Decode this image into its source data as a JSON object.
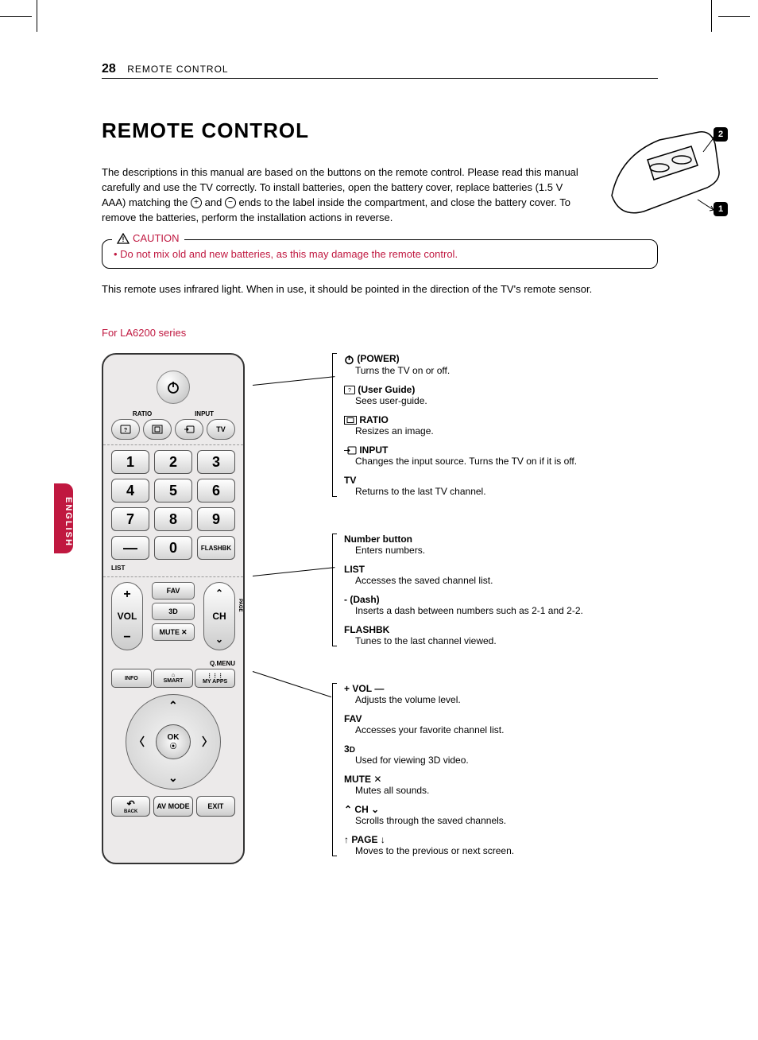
{
  "page": {
    "num": "28",
    "section": "REMOTE CONTROL",
    "title": "REMOTE CONTROL"
  },
  "lang_tab": "ENGLISH",
  "intro": {
    "p1a": "The descriptions in this manual are based on the buttons on the remote control.  Please read this manual carefully and use the TV correctly. To install batteries, open the battery cover, replace batteries (1.5 V AAA) matching the ",
    "p1b": " and ",
    "p1c": " ends to the label inside the compartment, and close the battery cover. To remove the batteries, perform the installation actions in reverse."
  },
  "caution": {
    "label": "CAUTION",
    "text": "Do not mix old and new batteries, as this may damage the remote control."
  },
  "infra": "This remote uses infrared light. When in use, it should be pointed in the direction of the TV's remote sensor.",
  "series": "For LA6200 series",
  "battery_badges": {
    "a": "2",
    "b": "1"
  },
  "remote": {
    "ratio_label": "RATIO",
    "input_label": "INPUT",
    "tv_label": "TV",
    "nums": [
      "1",
      "2",
      "3",
      "4",
      "5",
      "6",
      "7",
      "8",
      "9",
      "—",
      "0",
      "FLASHBK"
    ],
    "list_label": "LIST",
    "fav": "FAV",
    "threeD": "3D",
    "mute": "MUTE",
    "vol": "VOL",
    "ch": "CH",
    "page": "PAGE",
    "qmenu": "Q.MENU",
    "info": "INFO",
    "smart": "SMART",
    "myapps": "MY APPS",
    "ok": "OK",
    "back": "BACK",
    "avmode": "AV MODE",
    "exit": "EXIT"
  },
  "desc": {
    "g1": [
      {
        "t": "(POWER)",
        "d": "Turns the TV on or off.",
        "icon": "power"
      },
      {
        "t": "(User Guide)",
        "d": "Sees user-guide.",
        "icon": "guide"
      },
      {
        "t": "RATIO",
        "d": "Resizes an image.",
        "icon": "ratio"
      },
      {
        "t": "INPUT",
        "d": "Changes the input source. Turns the TV on if it is off.",
        "icon": "input"
      },
      {
        "t": "TV",
        "d": "Returns to the last TV channel."
      }
    ],
    "g2": [
      {
        "t": "Number button",
        "d": "Enters numbers."
      },
      {
        "t": "LIST",
        "d": "Accesses the saved channel list."
      },
      {
        "t": "- (Dash)",
        "d": "Inserts a dash between numbers such as 2-1 and 2-2."
      },
      {
        "t": "FLASHBK",
        "d": "Tunes to the last channel viewed."
      }
    ],
    "g3": [
      {
        "t": "VOL",
        "d": "Adjusts the volume level.",
        "prefix": "+ ",
        "suffix": " —"
      },
      {
        "t": "FAV",
        "d": "Accesses your favorite channel list."
      },
      {
        "t": "3D",
        "d": "Used for viewing 3D video.",
        "bold3d": true
      },
      {
        "t": "MUTE",
        "d": "Mutes all sounds.",
        "muteicon": true
      },
      {
        "t": "CH",
        "d": "Scrolls through the saved channels.",
        "chicons": true
      },
      {
        "t": "PAGE",
        "d": "Moves to the previous or next screen.",
        "pageicons": true
      }
    ]
  },
  "colors": {
    "accent": "#c01840",
    "text": "#000000",
    "panel": "#eceaea"
  }
}
